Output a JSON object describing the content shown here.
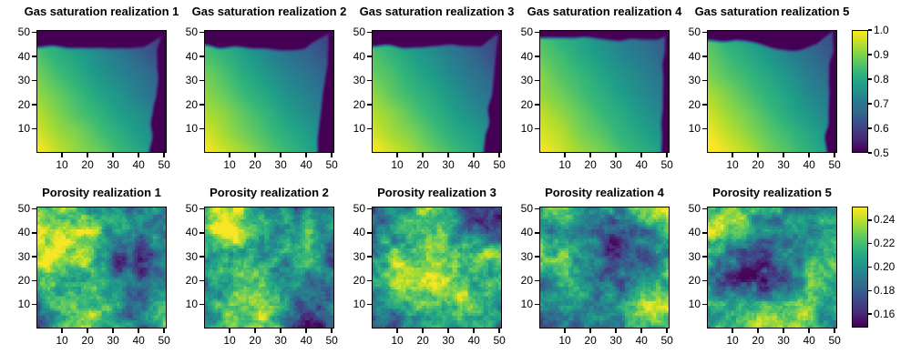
{
  "figure": {
    "background": "#ffffff",
    "colormap": "viridis",
    "viridis_stops": [
      "#440154",
      "#482878",
      "#3e4989",
      "#31688e",
      "#26828e",
      "#1f9e89",
      "#35b779",
      "#6ece58",
      "#b5de2b",
      "#fde725"
    ],
    "colorbars": [
      {
        "for": "gas-saturation-row",
        "vmin": 0.5,
        "vmax": 1.0,
        "tick_labels": [
          "1.0",
          "0.9",
          "0.8",
          "0.7",
          "0.6",
          "0.5"
        ],
        "tick_values": [
          1.0,
          0.9,
          0.8,
          0.7,
          0.6,
          0.5
        ]
      },
      {
        "for": "porosity-row",
        "vmin": 0.1485,
        "vmax": 0.2515,
        "tick_labels": [
          "0.24",
          "0.22",
          "0.20",
          "0.18",
          "0.16"
        ],
        "tick_values": [
          0.24,
          0.22,
          0.2,
          0.18,
          0.16
        ]
      }
    ]
  },
  "chart_data": [
    {
      "type": "heatmap",
      "row": 0,
      "title": "Gas saturation realization 1",
      "x_ticks": [
        10,
        20,
        30,
        40,
        50
      ],
      "y_ticks": [
        10,
        20,
        30,
        40,
        50
      ],
      "x_range": [
        0,
        50
      ],
      "y_range": [
        0,
        50
      ],
      "n_cells": [
        50,
        50
      ],
      "vmin": 0.5,
      "vmax": 1.0,
      "colormap": "viridis",
      "value_summary": {
        "bottom_left": 0.99,
        "center": 0.79,
        "top_right_interior": 0.68,
        "top_edge_band": 0.5,
        "right_edge_band": 0.5
      },
      "field": {
        "kind": "gas",
        "seed": 1,
        "v00": 1.0,
        "dvdx": -0.005,
        "dvdy": -0.0035,
        "band_y": 43.5,
        "dip_x": 22,
        "dip_w": 14,
        "dip_amp": 1.0,
        "wedge_x0": 41.5,
        "wedge_slope": 0.55,
        "right_x0": 44.0,
        "right_y0": 0,
        "right_slope": 0.07
      }
    },
    {
      "type": "heatmap",
      "row": 0,
      "title": "Gas saturation realization 2",
      "x_ticks": [
        10,
        20,
        30,
        40,
        50
      ],
      "y_ticks": [
        10,
        20,
        30,
        40,
        50
      ],
      "x_range": [
        0,
        50
      ],
      "y_range": [
        0,
        50
      ],
      "n_cells": [
        50,
        50
      ],
      "vmin": 0.5,
      "vmax": 1.0,
      "colormap": "viridis",
      "value_summary": {
        "bottom_left": 0.99,
        "center": 0.79,
        "top_right_interior": 0.7,
        "top_edge_band": 0.5,
        "right_edge_band": 0.5
      },
      "field": {
        "kind": "gas",
        "seed": 2,
        "v00": 1.0,
        "dvdx": -0.005,
        "dvdy": -0.0035,
        "band_y": 43.5,
        "dip_x": 30,
        "dip_w": 12,
        "dip_amp": 1.2,
        "wedge_x0": 39.0,
        "wedge_slope": 0.65,
        "right_x0": 43.5,
        "right_y0": 0,
        "right_slope": 0.09
      }
    },
    {
      "type": "heatmap",
      "row": 0,
      "title": "Gas saturation realization 3",
      "x_ticks": [
        10,
        20,
        30,
        40,
        50
      ],
      "y_ticks": [
        10,
        20,
        30,
        40,
        50
      ],
      "x_range": [
        0,
        50
      ],
      "y_range": [
        0,
        50
      ],
      "n_cells": [
        50,
        50
      ],
      "vmin": 0.5,
      "vmax": 1.0,
      "colormap": "viridis",
      "value_summary": {
        "bottom_left": 0.98,
        "center": 0.79,
        "top_right_interior": 0.7,
        "top_edge_band": 0.5,
        "right_edge_band": 0.5
      },
      "field": {
        "kind": "gas",
        "seed": 3,
        "v00": 1.0,
        "dvdx": -0.005,
        "dvdy": -0.0035,
        "band_y": 44.0,
        "dip_x": 20,
        "dip_w": 14,
        "dip_amp": 0.8,
        "wedge_x0": 42.0,
        "wedge_slope": 0.55,
        "right_x0": 43.5,
        "right_y0": 0,
        "right_slope": 0.1
      }
    },
    {
      "type": "heatmap",
      "row": 0,
      "title": "Gas saturation realization 4",
      "x_ticks": [
        10,
        20,
        30,
        40,
        50
      ],
      "y_ticks": [
        10,
        20,
        30,
        40,
        50
      ],
      "x_range": [
        0,
        50
      ],
      "y_range": [
        0,
        50
      ],
      "n_cells": [
        50,
        50
      ],
      "vmin": 0.5,
      "vmax": 1.0,
      "colormap": "viridis",
      "value_summary": {
        "bottom_left": 0.99,
        "center": 0.81,
        "top_right_interior": 0.64,
        "top_edge_band": 0.5,
        "right_edge_band": 0.5
      },
      "field": {
        "kind": "gas",
        "seed": 4,
        "v00": 1.0,
        "dvdx": -0.0046,
        "dvdy": -0.003,
        "band_y": 47.5,
        "dip_x": 38,
        "dip_w": 16,
        "dip_amp": 1.8,
        "wedge_x0": 45.0,
        "wedge_slope": 0.4,
        "right_x0": 46.8,
        "right_y0": 0,
        "right_slope": 0.03
      }
    },
    {
      "type": "heatmap",
      "row": 0,
      "title": "Gas saturation realization 5",
      "x_ticks": [
        10,
        20,
        30,
        40,
        50
      ],
      "y_ticks": [
        10,
        20,
        30,
        40,
        50
      ],
      "x_range": [
        0,
        50
      ],
      "y_range": [
        0,
        50
      ],
      "n_cells": [
        50,
        50
      ],
      "vmin": 0.5,
      "vmax": 1.0,
      "colormap": "viridis",
      "value_summary": {
        "bottom_left": 1.0,
        "center": 0.8,
        "top_center_dip": 0.5,
        "top_edge_band": 0.5,
        "right_edge_band": 0.5
      },
      "field": {
        "kind": "gas",
        "seed": 5,
        "v00": 1.02,
        "dvdx": -0.005,
        "dvdy": -0.0035,
        "band_y": 46.0,
        "dip_x": 32,
        "dip_w": 11,
        "dip_amp": 4.8,
        "wedge_x0": 42.5,
        "wedge_slope": 0.6,
        "right_x0": 46.3,
        "right_y0": 8,
        "right_slope": 0.05
      }
    },
    {
      "type": "heatmap",
      "row": 1,
      "title": "Porosity realization 1",
      "x_ticks": [
        10,
        20,
        30,
        40,
        50
      ],
      "y_ticks": [
        10,
        20,
        30,
        40,
        50
      ],
      "x_range": [
        0,
        50
      ],
      "y_range": [
        0,
        50
      ],
      "n_cells": [
        50,
        50
      ],
      "vmin": 0.1485,
      "vmax": 0.2515,
      "colormap": "viridis",
      "field": {
        "kind": "porosity",
        "seed": 11,
        "coarse_x": [
          0,
          10,
          20,
          30,
          40,
          50
        ],
        "coarse_y": [
          50,
          40,
          30,
          20,
          10,
          0
        ],
        "coarse": [
          [
            0.21,
            0.22,
            0.21,
            0.2,
            0.2,
            0.21
          ],
          [
            0.24,
            0.25,
            0.24,
            0.2,
            0.19,
            0.2
          ],
          [
            0.25,
            0.25,
            0.24,
            0.17,
            0.16,
            0.2
          ],
          [
            0.21,
            0.22,
            0.22,
            0.19,
            0.18,
            0.19
          ],
          [
            0.19,
            0.22,
            0.23,
            0.2,
            0.19,
            0.21
          ],
          [
            0.17,
            0.23,
            0.24,
            0.2,
            0.19,
            0.22
          ]
        ]
      }
    },
    {
      "type": "heatmap",
      "row": 1,
      "title": "Porosity realization 2",
      "x_ticks": [
        10,
        20,
        30,
        40,
        50
      ],
      "y_ticks": [
        10,
        20,
        30,
        40,
        50
      ],
      "x_range": [
        0,
        50
      ],
      "y_range": [
        0,
        50
      ],
      "n_cells": [
        50,
        50
      ],
      "vmin": 0.1485,
      "vmax": 0.2515,
      "colormap": "viridis",
      "field": {
        "kind": "porosity",
        "seed": 12,
        "coarse_x": [
          0,
          10,
          20,
          30,
          40,
          50
        ],
        "coarse_y": [
          50,
          40,
          30,
          20,
          10,
          0
        ],
        "coarse": [
          [
            0.22,
            0.25,
            0.21,
            0.19,
            0.19,
            0.2
          ],
          [
            0.24,
            0.25,
            0.21,
            0.21,
            0.22,
            0.19
          ],
          [
            0.21,
            0.22,
            0.21,
            0.2,
            0.22,
            0.18
          ],
          [
            0.2,
            0.21,
            0.22,
            0.21,
            0.19,
            0.18
          ],
          [
            0.2,
            0.23,
            0.25,
            0.21,
            0.18,
            0.19
          ],
          [
            0.2,
            0.21,
            0.23,
            0.2,
            0.15,
            0.17
          ]
        ]
      }
    },
    {
      "type": "heatmap",
      "row": 1,
      "title": "Porosity realization 3",
      "x_ticks": [
        10,
        20,
        30,
        40,
        50
      ],
      "y_ticks": [
        10,
        20,
        30,
        40,
        50
      ],
      "x_range": [
        0,
        50
      ],
      "y_range": [
        0,
        50
      ],
      "n_cells": [
        50,
        50
      ],
      "vmin": 0.1485,
      "vmax": 0.2515,
      "colormap": "viridis",
      "field": {
        "kind": "porosity",
        "seed": 13,
        "coarse_x": [
          0,
          10,
          20,
          30,
          40,
          50
        ],
        "coarse_y": [
          50,
          40,
          30,
          20,
          10,
          0
        ],
        "coarse": [
          [
            0.17,
            0.19,
            0.23,
            0.2,
            0.16,
            0.16
          ],
          [
            0.18,
            0.2,
            0.23,
            0.21,
            0.18,
            0.17
          ],
          [
            0.2,
            0.23,
            0.22,
            0.21,
            0.23,
            0.24
          ],
          [
            0.21,
            0.25,
            0.24,
            0.24,
            0.21,
            0.22
          ],
          [
            0.19,
            0.22,
            0.24,
            0.23,
            0.22,
            0.2
          ],
          [
            0.17,
            0.18,
            0.21,
            0.2,
            0.21,
            0.19
          ]
        ]
      }
    },
    {
      "type": "heatmap",
      "row": 1,
      "title": "Porosity realization 4",
      "x_ticks": [
        10,
        20,
        30,
        40,
        50
      ],
      "y_ticks": [
        10,
        20,
        30,
        40,
        50
      ],
      "x_range": [
        0,
        50
      ],
      "y_range": [
        0,
        50
      ],
      "n_cells": [
        50,
        50
      ],
      "vmin": 0.1485,
      "vmax": 0.2515,
      "colormap": "viridis",
      "field": {
        "kind": "porosity",
        "seed": 14,
        "coarse_x": [
          0,
          10,
          20,
          30,
          40,
          50
        ],
        "coarse_y": [
          50,
          40,
          30,
          20,
          10,
          0
        ],
        "coarse": [
          [
            0.21,
            0.22,
            0.2,
            0.2,
            0.22,
            0.25
          ],
          [
            0.2,
            0.19,
            0.2,
            0.16,
            0.19,
            0.21
          ],
          [
            0.22,
            0.23,
            0.19,
            0.16,
            0.18,
            0.2
          ],
          [
            0.2,
            0.21,
            0.19,
            0.18,
            0.19,
            0.22
          ],
          [
            0.19,
            0.2,
            0.2,
            0.21,
            0.23,
            0.24
          ],
          [
            0.17,
            0.19,
            0.2,
            0.19,
            0.21,
            0.22
          ]
        ]
      }
    },
    {
      "type": "heatmap",
      "row": 1,
      "title": "Porosity realization 5",
      "x_ticks": [
        10,
        20,
        30,
        40,
        50
      ],
      "y_ticks": [
        10,
        20,
        30,
        40,
        50
      ],
      "x_range": [
        0,
        50
      ],
      "y_range": [
        0,
        50
      ],
      "n_cells": [
        50,
        50
      ],
      "vmin": 0.1485,
      "vmax": 0.2515,
      "colormap": "viridis",
      "field": {
        "kind": "porosity",
        "seed": 15,
        "coarse_x": [
          0,
          10,
          20,
          30,
          40,
          50
        ],
        "coarse_y": [
          50,
          40,
          30,
          20,
          10,
          0
        ],
        "coarse": [
          [
            0.22,
            0.24,
            0.21,
            0.2,
            0.2,
            0.21
          ],
          [
            0.24,
            0.23,
            0.2,
            0.19,
            0.2,
            0.2
          ],
          [
            0.2,
            0.19,
            0.17,
            0.18,
            0.21,
            0.23
          ],
          [
            0.2,
            0.16,
            0.15,
            0.18,
            0.22,
            0.22
          ],
          [
            0.21,
            0.21,
            0.2,
            0.22,
            0.23,
            0.2
          ],
          [
            0.2,
            0.22,
            0.25,
            0.24,
            0.21,
            0.2
          ]
        ]
      }
    }
  ]
}
